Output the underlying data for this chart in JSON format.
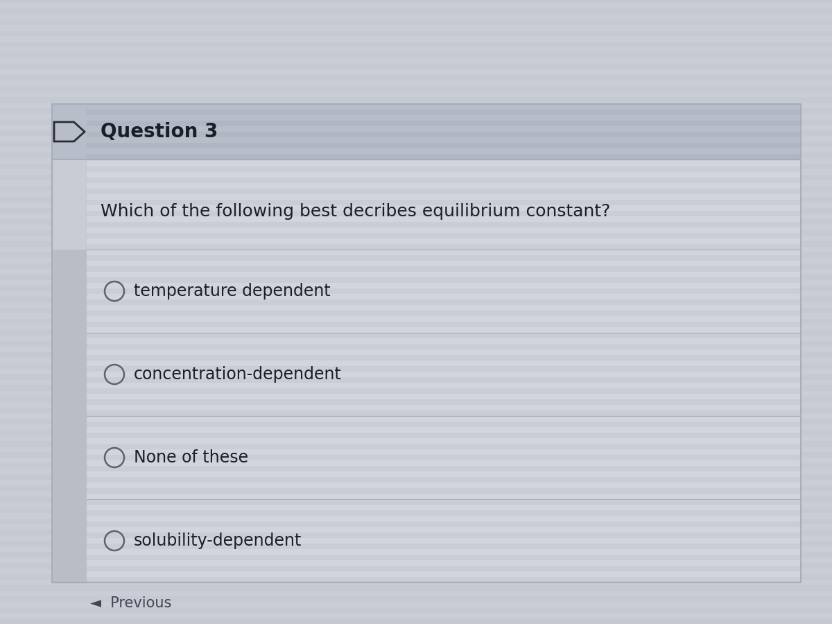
{
  "title": "Question 3",
  "question": "Which of the following best decribes equilibrium constant?",
  "options": [
    "temperature dependent",
    "concentration-dependent",
    "None of these",
    "solubility-dependent"
  ],
  "footer": "◄  Previous",
  "bg_outer": "#c8cdd6",
  "bg_content": "#d0d5de",
  "bg_header": "#b8bec9",
  "stripe_color": "#c4c9d2",
  "left_col_color": "#c2c7d0",
  "divider_color": "#a8adb8",
  "text_color": "#1a1e28",
  "footer_color": "#444455",
  "circle_color": "#606070",
  "icon_color": "#2a2a35",
  "title_fontsize": 20,
  "question_fontsize": 18,
  "option_fontsize": 17,
  "footer_fontsize": 15
}
